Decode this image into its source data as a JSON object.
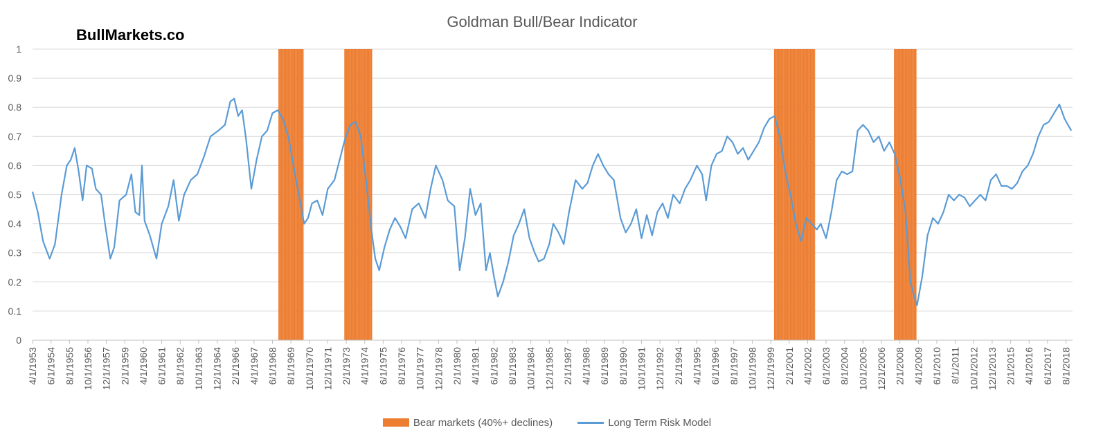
{
  "watermark": "BullMarkets.co",
  "colors": {
    "bear": "#ED7D31",
    "line": "#5B9BD5",
    "grid": "#D9D9D9",
    "axis": "#BFBFBF",
    "text": "#595959"
  },
  "chart_data": {
    "type": "line",
    "title": "Goldman Bull/Bear Indicator",
    "xlabel": "",
    "ylabel": "",
    "ylim": [
      0,
      1
    ],
    "yticks": [
      "0",
      "0.1",
      "0.2",
      "0.3",
      "0.4",
      "0.5",
      "0.6",
      "0.7",
      "0.8",
      "0.9",
      "1"
    ],
    "xlim": [
      "1953-04-01",
      "2018-12-31"
    ],
    "xtick_labels": [
      "4/1/1953",
      "6/1/1954",
      "8/1/1955",
      "10/1/1956",
      "12/1/1957",
      "2/1/1959",
      "4/1/1960",
      "6/1/1961",
      "8/1/1962",
      "10/1/1963",
      "12/1/1964",
      "2/1/1966",
      "4/1/1967",
      "6/1/1968",
      "8/1/1969",
      "10/1/1970",
      "12/1/1971",
      "2/1/1973",
      "4/1/1974",
      "6/1/1975",
      "8/1/1976",
      "10/1/1977",
      "12/1/1978",
      "2/1/1980",
      "4/1/1981",
      "6/1/1982",
      "8/1/1983",
      "10/1/1984",
      "12/1/1985",
      "2/1/1987",
      "4/1/1988",
      "6/1/1989",
      "8/1/1990",
      "10/1/1991",
      "12/1/1992",
      "2/1/1994",
      "4/1/1995",
      "6/1/1996",
      "8/1/1997",
      "10/1/1998",
      "12/1/1999",
      "2/1/2001",
      "4/1/2002",
      "6/1/2003",
      "8/1/2004",
      "10/1/2005",
      "12/1/2006",
      "2/1/2008",
      "4/1/2009",
      "6/1/2010",
      "8/1/2011",
      "10/1/2012",
      "12/1/2013",
      "2/1/2015",
      "4/1/2016",
      "6/1/2017",
      "8/1/2018"
    ],
    "legend": "bottom-center",
    "grid": true,
    "series": [
      {
        "name": "Bear markets (40%+ declines)",
        "type": "bar",
        "ranges": [
          {
            "start": "1968-11-01",
            "end": "1970-05-31"
          },
          {
            "start": "1973-01-01",
            "end": "1974-09-30"
          },
          {
            "start": "2000-03-01",
            "end": "2002-09-30"
          },
          {
            "start": "2007-10-01",
            "end": "2009-02-28"
          }
        ]
      },
      {
        "name": "Long Term Risk Model",
        "type": "line",
        "points": [
          [
            "1953-04-01",
            0.51
          ],
          [
            "1953-08-01",
            0.44
          ],
          [
            "1953-12-01",
            0.34
          ],
          [
            "1954-05-01",
            0.28
          ],
          [
            "1954-09-01",
            0.33
          ],
          [
            "1955-02-01",
            0.5
          ],
          [
            "1955-06-01",
            0.6
          ],
          [
            "1955-09-01",
            0.62
          ],
          [
            "1955-12-01",
            0.66
          ],
          [
            "1956-03-01",
            0.58
          ],
          [
            "1956-06-01",
            0.48
          ],
          [
            "1956-09-01",
            0.6
          ],
          [
            "1957-01-01",
            0.59
          ],
          [
            "1957-04-01",
            0.52
          ],
          [
            "1957-08-01",
            0.5
          ],
          [
            "1957-11-01",
            0.4
          ],
          [
            "1958-03-01",
            0.28
          ],
          [
            "1958-06-01",
            0.32
          ],
          [
            "1958-10-01",
            0.48
          ],
          [
            "1959-03-01",
            0.5
          ],
          [
            "1959-07-01",
            0.57
          ],
          [
            "1959-10-01",
            0.44
          ],
          [
            "1960-01-01",
            0.43
          ],
          [
            "1960-03-01",
            0.6
          ],
          [
            "1960-05-01",
            0.41
          ],
          [
            "1960-09-01",
            0.36
          ],
          [
            "1961-02-01",
            0.28
          ],
          [
            "1961-06-01",
            0.4
          ],
          [
            "1961-11-01",
            0.46
          ],
          [
            "1962-03-01",
            0.55
          ],
          [
            "1962-07-01",
            0.41
          ],
          [
            "1962-11-01",
            0.5
          ],
          [
            "1963-04-01",
            0.55
          ],
          [
            "1963-09-01",
            0.57
          ],
          [
            "1964-02-01",
            0.63
          ],
          [
            "1964-07-01",
            0.7
          ],
          [
            "1965-01-01",
            0.72
          ],
          [
            "1965-06-01",
            0.74
          ],
          [
            "1965-10-01",
            0.82
          ],
          [
            "1966-01-01",
            0.83
          ],
          [
            "1966-04-01",
            0.77
          ],
          [
            "1966-07-01",
            0.79
          ],
          [
            "1966-10-01",
            0.69
          ],
          [
            "1967-02-01",
            0.52
          ],
          [
            "1967-06-01",
            0.62
          ],
          [
            "1967-10-01",
            0.7
          ],
          [
            "1968-02-01",
            0.72
          ],
          [
            "1968-06-01",
            0.78
          ],
          [
            "1968-10-01",
            0.79
          ],
          [
            "1969-02-01",
            0.76
          ],
          [
            "1969-06-01",
            0.7
          ],
          [
            "1969-10-01",
            0.6
          ],
          [
            "1970-02-01",
            0.5
          ],
          [
            "1970-06-01",
            0.4
          ],
          [
            "1970-09-01",
            0.42
          ],
          [
            "1970-12-01",
            0.47
          ],
          [
            "1971-04-01",
            0.48
          ],
          [
            "1971-08-01",
            0.43
          ],
          [
            "1971-12-01",
            0.52
          ],
          [
            "1972-05-01",
            0.55
          ],
          [
            "1972-09-01",
            0.62
          ],
          [
            "1973-01-01",
            0.69
          ],
          [
            "1973-05-01",
            0.74
          ],
          [
            "1973-09-01",
            0.75
          ],
          [
            "1974-01-01",
            0.7
          ],
          [
            "1974-05-01",
            0.55
          ],
          [
            "1974-09-01",
            0.38
          ],
          [
            "1974-12-01",
            0.28
          ],
          [
            "1975-03-01",
            0.24
          ],
          [
            "1975-07-01",
            0.32
          ],
          [
            "1975-11-01",
            0.38
          ],
          [
            "1976-03-01",
            0.42
          ],
          [
            "1976-07-01",
            0.39
          ],
          [
            "1976-11-01",
            0.35
          ],
          [
            "1977-04-01",
            0.45
          ],
          [
            "1977-09-01",
            0.47
          ],
          [
            "1978-02-01",
            0.42
          ],
          [
            "1978-06-01",
            0.52
          ],
          [
            "1978-10-01",
            0.6
          ],
          [
            "1979-03-01",
            0.55
          ],
          [
            "1979-07-01",
            0.48
          ],
          [
            "1979-12-01",
            0.46
          ],
          [
            "1980-04-01",
            0.24
          ],
          [
            "1980-08-01",
            0.35
          ],
          [
            "1980-12-01",
            0.52
          ],
          [
            "1981-04-01",
            0.43
          ],
          [
            "1981-08-01",
            0.47
          ],
          [
            "1981-12-01",
            0.24
          ],
          [
            "1982-03-01",
            0.3
          ],
          [
            "1982-06-01",
            0.22
          ],
          [
            "1982-09-01",
            0.15
          ],
          [
            "1983-01-01",
            0.2
          ],
          [
            "1983-05-01",
            0.27
          ],
          [
            "1983-09-01",
            0.36
          ],
          [
            "1984-01-01",
            0.4
          ],
          [
            "1984-05-01",
            0.45
          ],
          [
            "1984-09-01",
            0.35
          ],
          [
            "1985-01-01",
            0.3
          ],
          [
            "1985-04-01",
            0.27
          ],
          [
            "1985-08-01",
            0.28
          ],
          [
            "1985-12-01",
            0.33
          ],
          [
            "1986-03-01",
            0.4
          ],
          [
            "1986-07-01",
            0.37
          ],
          [
            "1986-11-01",
            0.33
          ],
          [
            "1987-03-01",
            0.44
          ],
          [
            "1987-08-01",
            0.55
          ],
          [
            "1988-01-01",
            0.52
          ],
          [
            "1988-05-01",
            0.54
          ],
          [
            "1988-09-01",
            0.6
          ],
          [
            "1989-01-01",
            0.64
          ],
          [
            "1989-05-01",
            0.6
          ],
          [
            "1989-09-01",
            0.57
          ],
          [
            "1990-01-01",
            0.55
          ],
          [
            "1990-06-01",
            0.42
          ],
          [
            "1990-10-01",
            0.37
          ],
          [
            "1991-02-01",
            0.4
          ],
          [
            "1991-06-01",
            0.45
          ],
          [
            "1991-10-01",
            0.35
          ],
          [
            "1992-02-01",
            0.43
          ],
          [
            "1992-06-01",
            0.36
          ],
          [
            "1992-10-01",
            0.44
          ],
          [
            "1993-02-01",
            0.47
          ],
          [
            "1993-06-01",
            0.42
          ],
          [
            "1993-10-01",
            0.5
          ],
          [
            "1994-03-01",
            0.47
          ],
          [
            "1994-07-01",
            0.52
          ],
          [
            "1994-11-01",
            0.55
          ],
          [
            "1995-04-01",
            0.6
          ],
          [
            "1995-08-01",
            0.57
          ],
          [
            "1995-11-01",
            0.48
          ],
          [
            "1996-03-01",
            0.6
          ],
          [
            "1996-07-01",
            0.64
          ],
          [
            "1996-11-01",
            0.65
          ],
          [
            "1997-03-01",
            0.7
          ],
          [
            "1997-07-01",
            0.68
          ],
          [
            "1997-11-01",
            0.64
          ],
          [
            "1998-03-01",
            0.66
          ],
          [
            "1998-07-01",
            0.62
          ],
          [
            "1998-11-01",
            0.65
          ],
          [
            "1999-03-01",
            0.68
          ],
          [
            "1999-07-01",
            0.73
          ],
          [
            "1999-11-01",
            0.76
          ],
          [
            "2000-03-01",
            0.77
          ],
          [
            "2000-07-01",
            0.7
          ],
          [
            "2000-11-01",
            0.58
          ],
          [
            "2001-03-01",
            0.5
          ],
          [
            "2001-07-01",
            0.4
          ],
          [
            "2001-11-01",
            0.34
          ],
          [
            "2002-03-01",
            0.42
          ],
          [
            "2002-07-01",
            0.4
          ],
          [
            "2002-11-01",
            0.38
          ],
          [
            "2003-02-01",
            0.4
          ],
          [
            "2003-06-01",
            0.35
          ],
          [
            "2003-10-01",
            0.44
          ],
          [
            "2004-02-01",
            0.55
          ],
          [
            "2004-06-01",
            0.58
          ],
          [
            "2004-10-01",
            0.57
          ],
          [
            "2005-02-01",
            0.58
          ],
          [
            "2005-06-01",
            0.72
          ],
          [
            "2005-10-01",
            0.74
          ],
          [
            "2006-02-01",
            0.72
          ],
          [
            "2006-06-01",
            0.68
          ],
          [
            "2006-10-01",
            0.7
          ],
          [
            "2007-02-01",
            0.65
          ],
          [
            "2007-06-01",
            0.68
          ],
          [
            "2007-10-01",
            0.64
          ],
          [
            "2008-02-01",
            0.56
          ],
          [
            "2008-06-01",
            0.45
          ],
          [
            "2008-10-01",
            0.2
          ],
          [
            "2009-01-01",
            0.15
          ],
          [
            "2009-03-01",
            0.12
          ],
          [
            "2009-07-01",
            0.22
          ],
          [
            "2009-11-01",
            0.36
          ],
          [
            "2010-03-01",
            0.42
          ],
          [
            "2010-07-01",
            0.4
          ],
          [
            "2010-11-01",
            0.44
          ],
          [
            "2011-03-01",
            0.5
          ],
          [
            "2011-07-01",
            0.48
          ],
          [
            "2011-11-01",
            0.5
          ],
          [
            "2012-03-01",
            0.49
          ],
          [
            "2012-07-01",
            0.46
          ],
          [
            "2012-11-01",
            0.48
          ],
          [
            "2013-03-01",
            0.5
          ],
          [
            "2013-07-01",
            0.48
          ],
          [
            "2013-11-01",
            0.55
          ],
          [
            "2014-03-01",
            0.57
          ],
          [
            "2014-07-01",
            0.53
          ],
          [
            "2014-11-01",
            0.53
          ],
          [
            "2015-03-01",
            0.52
          ],
          [
            "2015-07-01",
            0.54
          ],
          [
            "2015-11-01",
            0.58
          ],
          [
            "2016-03-01",
            0.6
          ],
          [
            "2016-07-01",
            0.64
          ],
          [
            "2016-11-01",
            0.7
          ],
          [
            "2017-03-01",
            0.74
          ],
          [
            "2017-07-01",
            0.75
          ],
          [
            "2017-11-01",
            0.78
          ],
          [
            "2018-03-01",
            0.81
          ],
          [
            "2018-07-01",
            0.76
          ],
          [
            "2018-12-01",
            0.72
          ]
        ]
      }
    ]
  }
}
